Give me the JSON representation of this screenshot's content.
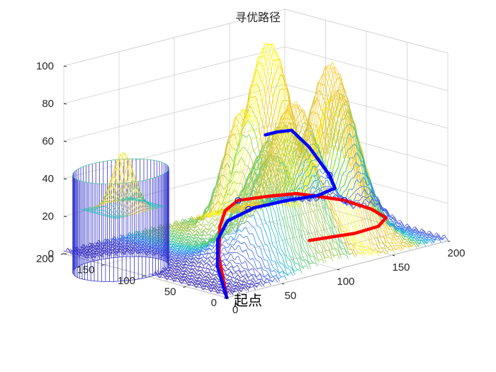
{
  "chart_data": {
    "type": "surface3d",
    "title": "寻优路径",
    "xlim": [
      0,
      200
    ],
    "ylim": [
      0,
      200
    ],
    "zlim": [
      0,
      100
    ],
    "x_ticks": [
      0,
      50,
      100,
      150,
      200
    ],
    "y_ticks": [
      0,
      50,
      100,
      150,
      200
    ],
    "z_ticks": [
      0,
      20,
      40,
      60,
      80,
      100
    ],
    "grid": true,
    "colormap": "parula",
    "terrain_peaks": [
      {
        "x": 75,
        "y": 45,
        "height": 58,
        "width": 18
      },
      {
        "x": 95,
        "y": 60,
        "height": 68,
        "width": 26
      },
      {
        "x": 140,
        "y": 55,
        "height": 81,
        "width": 18
      },
      {
        "x": 160,
        "y": 90,
        "height": 88,
        "width": 18
      },
      {
        "x": 130,
        "y": 125,
        "height": 100,
        "width": 18
      },
      {
        "x": 160,
        "y": 135,
        "height": 62,
        "width": 18
      },
      {
        "x": 125,
        "y": 150,
        "height": 62,
        "width": 14
      }
    ],
    "obstacle_cylinder": {
      "center_x": 0,
      "center_y": 130,
      "radius": 35,
      "height": 52,
      "color": "#3333cc"
    },
    "obstacle_peak": {
      "x": 2,
      "y": 130,
      "height": 62
    },
    "series": [
      {
        "color": "#ff0000",
        "x": [
          0,
          15,
          38,
          65,
          95,
          125,
          150,
          165,
          180,
          190,
          192,
          180,
          160,
          130
        ],
        "y": [
          0,
          30,
          60,
          90,
          115,
          120,
          118,
          110,
          100,
          80,
          65,
          58,
          60,
          75
        ],
        "z": [
          0,
          16,
          25,
          26,
          24,
          21,
          19,
          16,
          13,
          9,
          6,
          4,
          3,
          2
        ],
        "markers": [
          {
            "x": 95,
            "y": 115,
            "z": 24
          },
          {
            "x": 180,
            "y": 100,
            "z": 13
          }
        ]
      },
      {
        "color": "#0000ff",
        "x": [
          0,
          10,
          25,
          45,
          80,
          120,
          160,
          190,
          200,
          200,
          195,
          185,
          175
        ],
        "y": [
          0,
          25,
          45,
          60,
          75,
          90,
          105,
          125,
          145,
          170,
          185,
          190,
          190
        ],
        "z": [
          0,
          12,
          22,
          27,
          27,
          23,
          18,
          15,
          18,
          30,
          38,
          38,
          38
        ],
        "markers": [
          {
            "x": 75,
            "y": 75,
            "z": 27
          },
          {
            "x": 200,
            "y": 145,
            "z": 18
          }
        ]
      }
    ],
    "annotations": [
      "起点"
    ]
  }
}
